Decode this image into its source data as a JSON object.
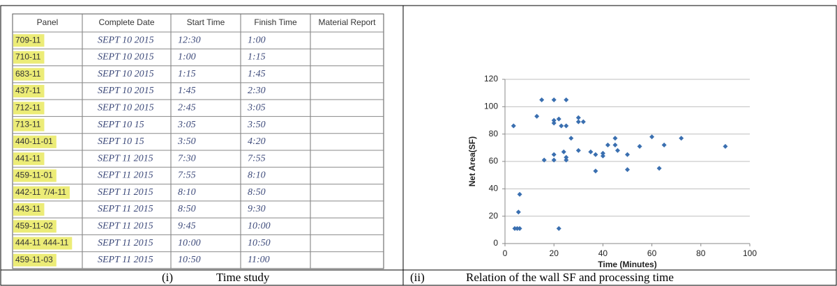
{
  "table": {
    "header": [
      "Panel",
      "Complete Date",
      "Start Time",
      "Finish Time",
      "Material Report"
    ],
    "rows": [
      [
        "709-11",
        "SEPT 10 2015",
        "12:30",
        "1:00"
      ],
      [
        "710-11",
        "SEPT 10 2015",
        "1:00",
        "1:15"
      ],
      [
        "683-11",
        "SEPT 10 2015",
        "1:15",
        "1:45"
      ],
      [
        "437-11",
        "SEPT 10 2015",
        "1:45",
        "2:30"
      ],
      [
        "712-11",
        "SEPT 10 2015",
        "2:45",
        "3:05"
      ],
      [
        "713-11",
        "SEPT 10 15",
        "3:05",
        "3:50"
      ],
      [
        "440-11-01",
        "SEPT 10 15",
        "3:50",
        "4:20"
      ],
      [
        "441-11",
        "SEPT 11 2015",
        "7:30",
        "7:55"
      ],
      [
        "459-11-01",
        "SEPT 11 2015",
        "7:55",
        "8:10"
      ],
      [
        "442-11 7/4-11",
        "SEPT 11 2015",
        "8:10",
        "8:50"
      ],
      [
        "443-11",
        "SEPT 11 2015",
        "8:50",
        "9:30"
      ],
      [
        "459-11-02",
        "SEPT 11 2015",
        "9:45",
        "10:00"
      ],
      [
        "444-11 444-11",
        "SEPT 11 2015",
        "10:00",
        "10:50"
      ],
      [
        "459-11-03",
        "SEPT 11 2015",
        "10:50",
        "11:00"
      ]
    ]
  },
  "chart_data": {
    "type": "scatter",
    "xlabel": "Time (Minutes)",
    "ylabel": "Net Area(SF)",
    "color": "#3a6fb0",
    "grid": true,
    "x": [
      3.5,
      4,
      5,
      6,
      5.5,
      6,
      13,
      15,
      16,
      20,
      20,
      20,
      20,
      20,
      22,
      22,
      23,
      24,
      25,
      25,
      25,
      25,
      27,
      30,
      30,
      30,
      32,
      35,
      37,
      37,
      40,
      40,
      42,
      45,
      45,
      46,
      50,
      50,
      55,
      60,
      63,
      65,
      72,
      90
    ],
    "values": [
      86,
      11,
      11,
      11,
      23,
      36,
      93,
      105,
      61,
      105,
      90,
      88,
      65,
      61,
      91,
      11,
      86,
      67,
      105,
      86,
      63,
      61,
      77,
      68,
      92,
      89,
      89,
      67,
      65,
      53,
      66,
      64,
      72,
      77,
      72,
      68,
      65,
      54,
      71,
      78,
      55,
      72,
      77,
      71
    ],
    "xlim": [
      0,
      100
    ],
    "xticks": [
      0,
      20,
      40,
      60,
      80,
      100
    ],
    "ylim": [
      0,
      120
    ],
    "yticks": [
      0,
      20,
      40,
      60,
      80,
      100,
      120
    ]
  },
  "captions": [
    {
      "label": "(i)",
      "text": "Time study"
    },
    {
      "label": "(ii)",
      "text": "Relation of the wall SF and processing time"
    }
  ]
}
